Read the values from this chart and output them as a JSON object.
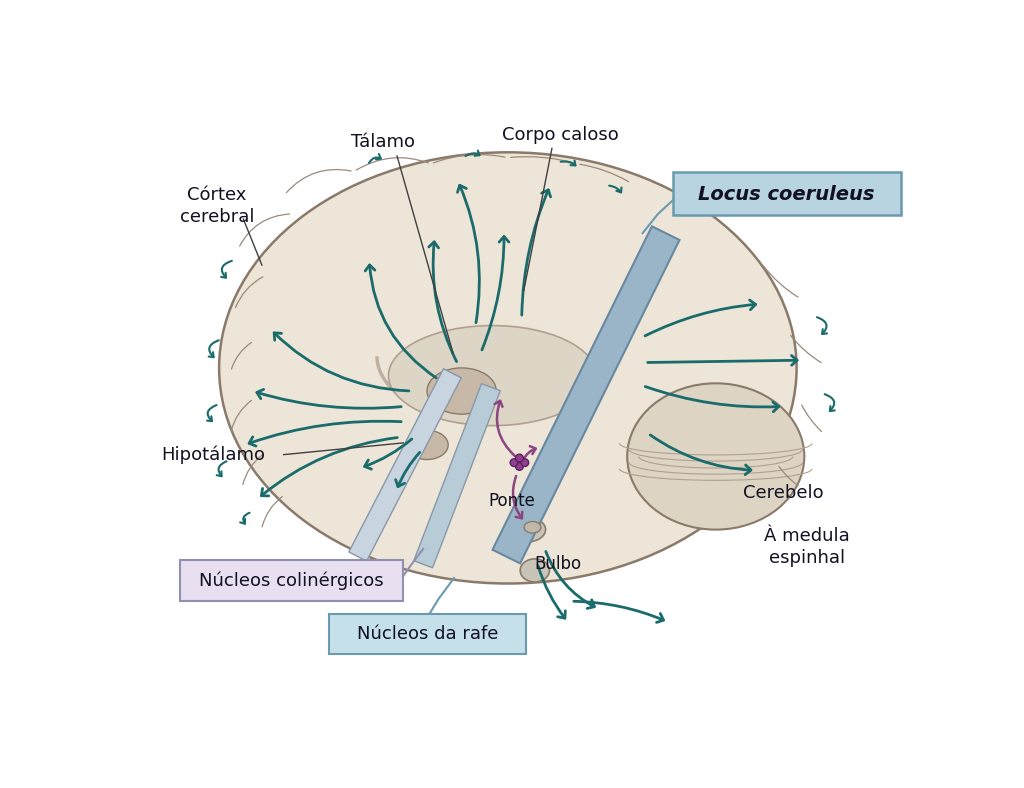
{
  "background_color": "#ffffff",
  "brain_outline_color": "#c8b89a",
  "arrow_color": "#1a6b6b",
  "arrow_purple": "#8b4580",
  "locus_box_color": "#b8d4e0",
  "locus_box_edge": "#6a9ab0",
  "cholinergic_box_color": "#e8e0f0",
  "cholinergic_box_edge": "#9090b0",
  "rafe_box_color": "#c5e0e8",
  "rafe_box_edge": "#6a9ab0",
  "labels": {
    "talamo": "Tálamo",
    "corpo_caloso": "Corpo caloso",
    "cortex": "Córtex\ncerebral",
    "hipotalamo": "Hipotálamo",
    "locus": "Locus coeruleus",
    "cholinergic": "Núcleos colinérgicos",
    "rafe": "Núcleos da rafe",
    "ponte": "Ponte",
    "bulbo": "Bulbo",
    "cerebelo": "Cerebelo",
    "medula": "À medula\nespinhal"
  },
  "figsize": [
    10.24,
    7.88
  ],
  "dpi": 100
}
